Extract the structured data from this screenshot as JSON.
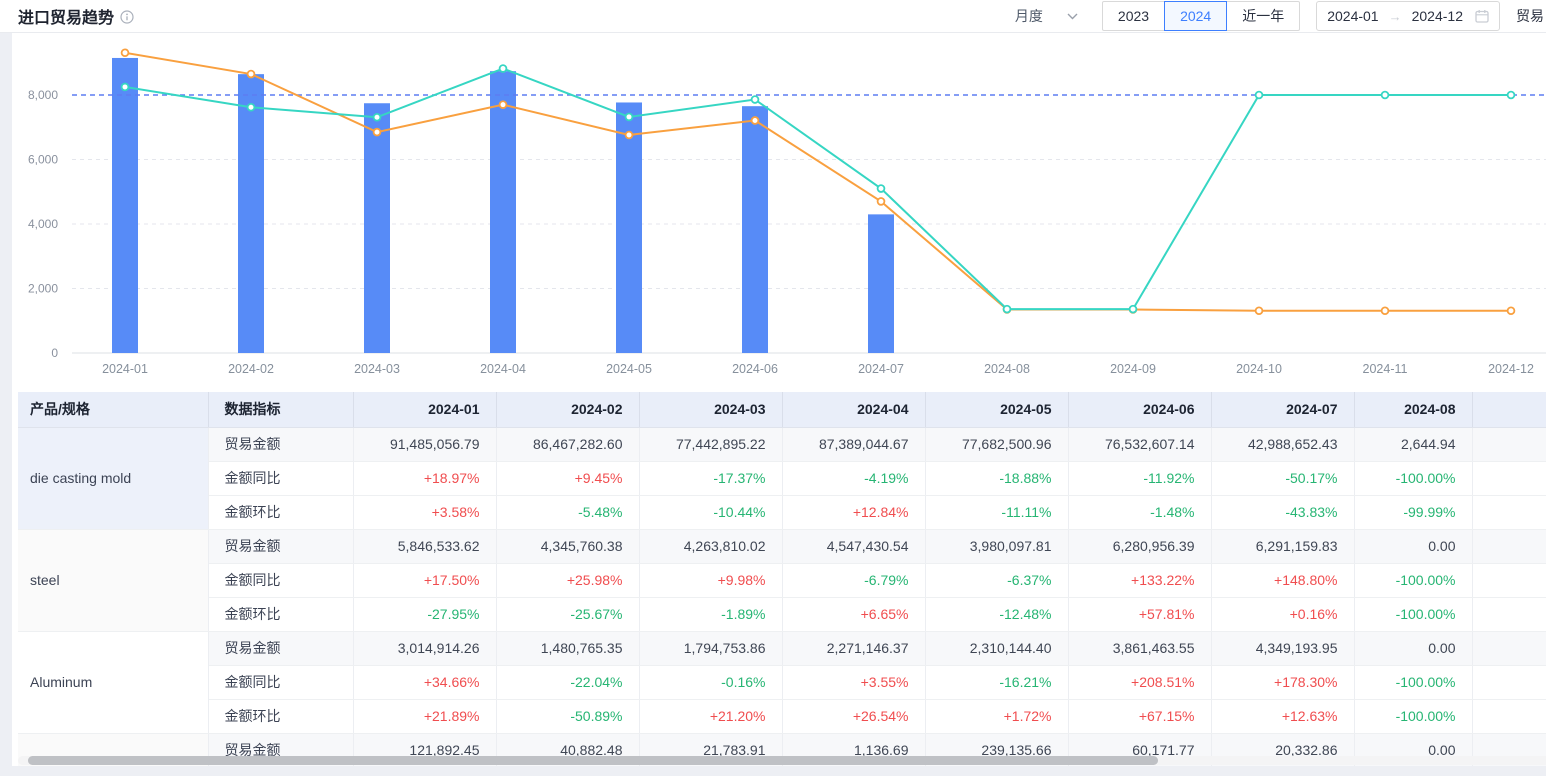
{
  "header": {
    "title": "进口贸易趋势"
  },
  "toolbar": {
    "frequency_value": "月度",
    "year_buttons": [
      {
        "label": "2023",
        "active": false
      },
      {
        "label": "2024",
        "active": true
      },
      {
        "label": "近一年",
        "active": false
      }
    ],
    "date_range": {
      "start": "2024-01",
      "separator": "→",
      "end": "2024-12"
    },
    "trade_label": "贸易"
  },
  "colors": {
    "bar": "#578bf7",
    "line_orange": "#f9a03f",
    "line_teal": "#36d6c3",
    "refline": "#5d7df2",
    "positive_red": "#f04d4f",
    "negative_green": "#26b573",
    "accent_blue": "#3d7fff",
    "table_header_bg": "#e9eef9",
    "product_cell_bgs": [
      "#edf1fa",
      "#fafafa",
      "#ffffff",
      "#fafafa"
    ]
  },
  "chart_data": {
    "type": "bar+line",
    "categories": [
      "2024-01",
      "2024-02",
      "2024-03",
      "2024-04",
      "2024-05",
      "2024-06",
      "2024-07",
      "2024-08",
      "2024-09",
      "2024-10",
      "2024-11",
      "2024-12"
    ],
    "series": [
      {
        "name": "bar_trade_amount",
        "type": "bar",
        "values": [
          9148.5,
          8646.7,
          7744.3,
          8738.9,
          7768.3,
          7653.3,
          4298.9,
          0.3,
          0,
          0,
          0,
          0
        ]
      },
      {
        "name": "line_orange",
        "type": "line",
        "values": [
          9310,
          8650,
          6850,
          7700,
          6760,
          7210,
          4700,
          1350,
          1350,
          1310,
          1310,
          1310
        ]
      },
      {
        "name": "line_teal",
        "type": "line",
        "values": [
          8250,
          7620,
          7310,
          8820,
          7320,
          7860,
          5100,
          1360,
          1360,
          8000,
          8000,
          8000
        ]
      }
    ],
    "y_ticks": [
      {
        "value": 0,
        "label": "0"
      },
      {
        "value": 2000,
        "label": "2,000"
      },
      {
        "value": 4000,
        "label": "4,000"
      },
      {
        "value": 6000,
        "label": "6,000"
      },
      {
        "value": 8000,
        "label": "8,000"
      }
    ],
    "reference_line": 8000,
    "ylim": [
      0,
      9500
    ],
    "grid": true,
    "legend_position": "none",
    "title": "",
    "xlabel": "",
    "ylabel": ""
  },
  "table": {
    "columns": {
      "product": "产品/规格",
      "metric": "数据指标"
    },
    "months": [
      "2024-01",
      "2024-02",
      "2024-03",
      "2024-04",
      "2024-05",
      "2024-06",
      "2024-07",
      "2024-08"
    ],
    "metric_money": "贸易金额",
    "groups": [
      {
        "product": "die casting mold",
        "rows": [
          {
            "metric": "贸易金额",
            "values": [
              "91,485,056.79",
              "86,467,282.60",
              "77,442,895.22",
              "87,389,044.67",
              "77,682,500.96",
              "76,532,607.14",
              "42,988,652.43",
              "2,644.94"
            ]
          },
          {
            "metric": "金额同比",
            "values": [
              "+18.97%",
              "+9.45%",
              "-17.37%",
              "-4.19%",
              "-18.88%",
              "-11.92%",
              "-50.17%",
              "-100.00%"
            ]
          },
          {
            "metric": "金额环比",
            "values": [
              "+3.58%",
              "-5.48%",
              "-10.44%",
              "+12.84%",
              "-11.11%",
              "-1.48%",
              "-43.83%",
              "-99.99%"
            ]
          }
        ]
      },
      {
        "product": "steel",
        "rows": [
          {
            "metric": "贸易金额",
            "values": [
              "5,846,533.62",
              "4,345,760.38",
              "4,263,810.02",
              "4,547,430.54",
              "3,980,097.81",
              "6,280,956.39",
              "6,291,159.83",
              "0.00"
            ]
          },
          {
            "metric": "金额同比",
            "values": [
              "+17.50%",
              "+25.98%",
              "+9.98%",
              "-6.79%",
              "-6.37%",
              "+133.22%",
              "+148.80%",
              "-100.00%"
            ]
          },
          {
            "metric": "金额环比",
            "values": [
              "-27.95%",
              "-25.67%",
              "-1.89%",
              "+6.65%",
              "-12.48%",
              "+57.81%",
              "+0.16%",
              "-100.00%"
            ]
          }
        ]
      },
      {
        "product": "Aluminum",
        "rows": [
          {
            "metric": "贸易金额",
            "values": [
              "3,014,914.26",
              "1,480,765.35",
              "1,794,753.86",
              "2,271,146.37",
              "2,310,144.40",
              "3,861,463.55",
              "4,349,193.95",
              "0.00"
            ]
          },
          {
            "metric": "金额同比",
            "values": [
              "+34.66%",
              "-22.04%",
              "-0.16%",
              "+3.55%",
              "-16.21%",
              "+208.51%",
              "+178.30%",
              "-100.00%"
            ]
          },
          {
            "metric": "金额环比",
            "values": [
              "+21.89%",
              "-50.89%",
              "+21.20%",
              "+26.54%",
              "+1.72%",
              "+67.15%",
              "+12.63%",
              "-100.00%"
            ]
          }
        ]
      },
      {
        "product": "",
        "rows": [
          {
            "metric": "贸易金额",
            "values": [
              "121,892.45",
              "40,882.48",
              "21,783.91",
              "1,136.69",
              "239,135.66",
              "60,171.77",
              "20,332.86",
              "0.00"
            ]
          }
        ]
      }
    ]
  }
}
